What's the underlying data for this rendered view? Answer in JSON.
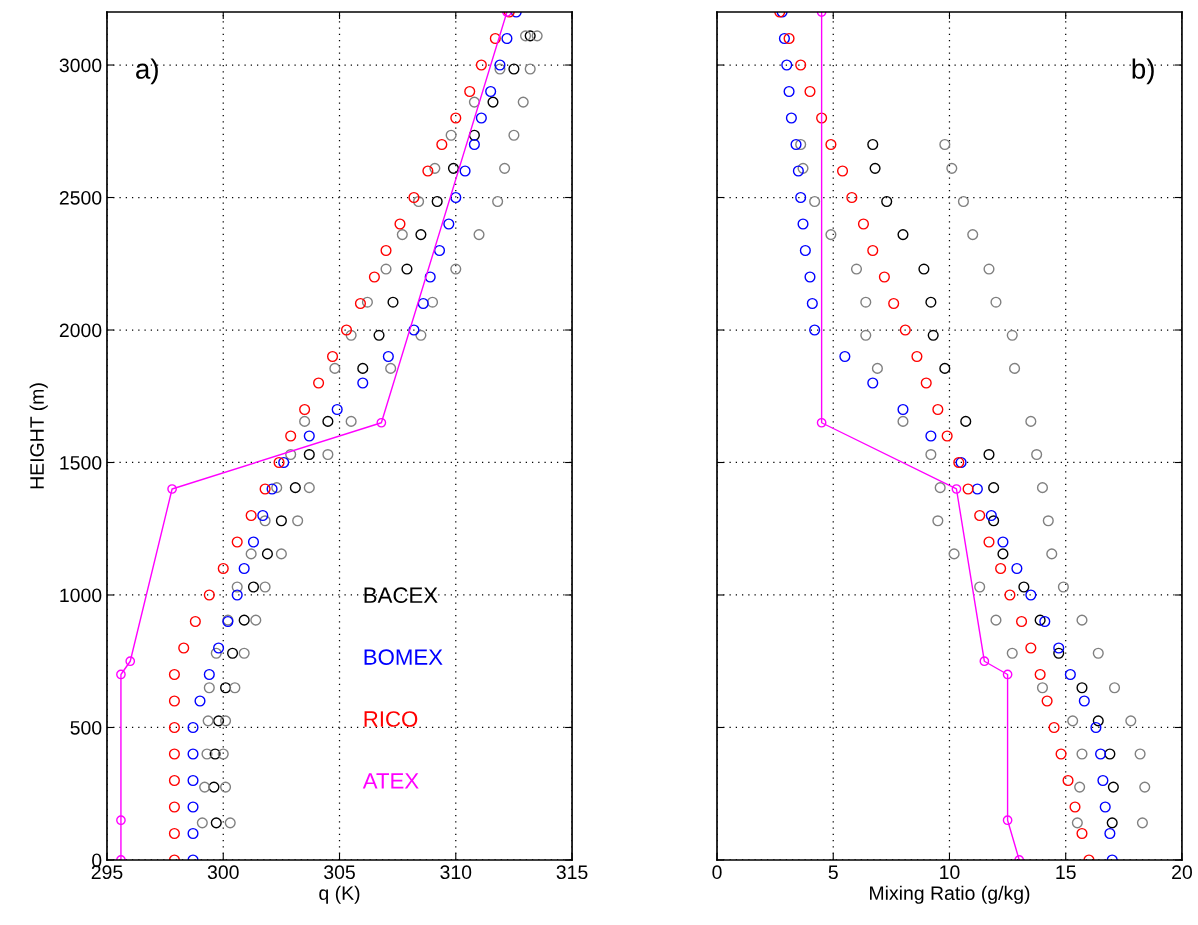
{
  "chart_data": [
    {
      "type": "scatter",
      "xlabel": "q (K)",
      "ylabel": "HEIGHT (m)",
      "annotations": [
        "a)"
      ],
      "xlim": [
        295,
        315
      ],
      "xticks": [
        295,
        300,
        305,
        310,
        315
      ],
      "ylim": [
        0,
        3200
      ],
      "yticks": [
        0,
        500,
        1000,
        1500,
        2000,
        2500,
        3000
      ],
      "grid": true,
      "legend": "bottom right",
      "marker": "circle",
      "series": [
        {
          "name": "BACEX",
          "color": "#000000",
          "x": [
            299.7,
            299.6,
            299.65,
            299.8,
            300.1,
            300.4,
            300.9,
            301.3,
            301.9,
            302.5,
            303.1,
            303.7,
            304.5,
            306.0,
            306.7,
            307.3,
            307.9,
            308.5,
            309.2,
            309.9,
            310.8,
            311.6,
            312.5,
            313.2
          ],
          "values": [
            140,
            275,
            400,
            525,
            650,
            780,
            905,
            1030,
            1155,
            1280,
            1405,
            1530,
            1655,
            1855,
            1980,
            2105,
            2230,
            2360,
            2485,
            2610,
            2735,
            2860,
            2985,
            3110
          ]
        },
        {
          "color": "#808080",
          "x": [
            299.1,
            299.2,
            299.3,
            299.35,
            299.4,
            299.7,
            300.2,
            300.6,
            301.2,
            301.8,
            302.3,
            302.9,
            303.5,
            304.8,
            305.5,
            306.2,
            307.0,
            307.7,
            308.4,
            309.1,
            309.8,
            310.8,
            311.9,
            313.0
          ],
          "values": [
            140,
            275,
            400,
            525,
            650,
            780,
            905,
            1030,
            1155,
            1280,
            1405,
            1530,
            1655,
            1855,
            1980,
            2105,
            2230,
            2360,
            2485,
            2610,
            2735,
            2860,
            2985,
            3110
          ]
        },
        {
          "color": "#808080",
          "x": [
            300.3,
            300.1,
            300.0,
            300.1,
            300.5,
            300.9,
            301.4,
            301.8,
            302.5,
            303.2,
            303.7,
            304.5,
            305.5,
            307.2,
            308.5,
            309.0,
            310.0,
            311.0,
            311.8,
            312.1,
            312.5,
            312.9,
            313.2,
            313.5
          ],
          "values": [
            140,
            275,
            400,
            525,
            650,
            780,
            905,
            1030,
            1155,
            1280,
            1405,
            1530,
            1655,
            1855,
            1980,
            2105,
            2230,
            2360,
            2485,
            2610,
            2735,
            2860,
            2985,
            3110
          ]
        },
        {
          "name": "BOMEX",
          "color": "#0000ff",
          "x": [
            298.7,
            298.7,
            298.7,
            298.7,
            298.7,
            298.7,
            299.0,
            299.4,
            299.8,
            300.2,
            300.6,
            300.9,
            301.3,
            301.7,
            302.1,
            302.6,
            303.7,
            304.9,
            306.0,
            307.1,
            308.2,
            308.6,
            308.9,
            309.3,
            309.7,
            310.0,
            310.4,
            310.8,
            311.1,
            311.5,
            311.9,
            312.2,
            312.6
          ],
          "values": [
            0,
            100,
            200,
            300,
            400,
            500,
            600,
            700,
            800,
            900,
            1000,
            1100,
            1200,
            1300,
            1400,
            1500,
            1600,
            1700,
            1800,
            1900,
            2000,
            2100,
            2200,
            2300,
            2400,
            2500,
            2600,
            2700,
            2800,
            2900,
            3000,
            3100,
            3200
          ]
        },
        {
          "name": "RICO",
          "color": "#ff0000",
          "x": [
            297.9,
            297.9,
            297.9,
            297.9,
            297.9,
            297.9,
            297.9,
            297.9,
            298.3,
            298.8,
            299.4,
            300.0,
            300.6,
            301.2,
            301.8,
            302.4,
            302.9,
            303.5,
            304.1,
            304.7,
            305.3,
            305.9,
            306.5,
            307.0,
            307.6,
            308.2,
            308.8,
            309.4,
            310.0,
            310.6,
            311.1,
            311.7,
            312.3
          ],
          "values": [
            0,
            100,
            200,
            300,
            400,
            500,
            600,
            700,
            800,
            900,
            1000,
            1100,
            1200,
            1300,
            1400,
            1500,
            1600,
            1700,
            1800,
            1900,
            2000,
            2100,
            2200,
            2300,
            2400,
            2500,
            2600,
            2700,
            2800,
            2900,
            3000,
            3100,
            3200
          ]
        },
        {
          "name": "ATEX",
          "color": "#ff00ff",
          "type": "line",
          "x": [
            295.6,
            295.6,
            295.6,
            296.0,
            297.8,
            306.8,
            312.2
          ],
          "values": [
            0,
            150,
            700,
            750,
            1400,
            1650,
            3200
          ]
        }
      ]
    },
    {
      "type": "scatter",
      "xlabel": "Mixing Ratio (g/kg)",
      "annotations": [
        "b)"
      ],
      "xlim": [
        0,
        20
      ],
      "xticks": [
        0,
        5,
        10,
        15,
        20
      ],
      "ylim": [
        0,
        3200
      ],
      "yticks": [
        0,
        500,
        1000,
        1500,
        2000,
        2500,
        3000
      ],
      "tick_labels": "x",
      "grid": true,
      "marker": "circle",
      "series": [
        {
          "color": "#000000",
          "x": [
            17.0,
            17.05,
            16.9,
            16.4,
            15.7,
            14.7,
            13.9,
            13.2,
            12.3,
            11.9,
            11.9,
            11.7,
            10.7,
            9.8,
            9.3,
            9.2,
            8.9,
            8.0,
            7.3,
            6.8,
            6.7
          ],
          "values": [
            140,
            275,
            400,
            525,
            650,
            780,
            905,
            1030,
            1155,
            1280,
            1405,
            1530,
            1655,
            1855,
            1980,
            2105,
            2230,
            2360,
            2485,
            2610,
            2700
          ]
        },
        {
          "color": "#808080",
          "x": [
            15.5,
            15.6,
            15.7,
            15.3,
            14.0,
            12.7,
            12.0,
            11.3,
            10.2,
            9.5,
            9.6,
            9.2,
            8.0,
            6.9,
            6.4,
            6.4,
            6.0,
            4.9,
            4.2,
            3.7,
            3.6
          ],
          "values": [
            140,
            275,
            400,
            525,
            650,
            780,
            905,
            1030,
            1155,
            1280,
            1405,
            1530,
            1655,
            1855,
            1980,
            2105,
            2230,
            2360,
            2485,
            2610,
            2700
          ]
        },
        {
          "color": "#808080",
          "x": [
            18.3,
            18.4,
            18.2,
            17.8,
            17.1,
            16.4,
            15.7,
            14.9,
            14.4,
            14.25,
            14.0,
            13.75,
            13.5,
            12.8,
            12.7,
            12.0,
            11.7,
            11.0,
            10.6,
            10.1,
            9.8
          ],
          "values": [
            140,
            275,
            400,
            525,
            650,
            780,
            905,
            1030,
            1155,
            1280,
            1405,
            1530,
            1655,
            1855,
            1980,
            2105,
            2230,
            2360,
            2485,
            2610,
            2700
          ]
        },
        {
          "color": "#0000ff",
          "x": [
            17.0,
            16.9,
            16.7,
            16.6,
            16.5,
            16.3,
            15.8,
            15.2,
            14.7,
            14.1,
            13.5,
            12.9,
            12.3,
            11.8,
            11.2,
            10.5,
            9.2,
            8.0,
            6.7,
            5.5,
            4.2,
            4.1,
            4.0,
            3.8,
            3.7,
            3.6,
            3.5,
            3.4,
            3.2,
            3.1,
            3.0,
            2.9,
            2.8
          ],
          "values": [
            0,
            100,
            200,
            300,
            400,
            500,
            600,
            700,
            800,
            900,
            1000,
            1100,
            1200,
            1300,
            1400,
            1500,
            1600,
            1700,
            1800,
            1900,
            2000,
            2100,
            2200,
            2300,
            2400,
            2500,
            2600,
            2700,
            2800,
            2900,
            3000,
            3100,
            3200
          ]
        },
        {
          "color": "#ff0000",
          "x": [
            16.0,
            15.7,
            15.4,
            15.1,
            14.8,
            14.5,
            14.2,
            13.9,
            13.5,
            13.1,
            12.6,
            12.2,
            11.7,
            11.3,
            10.8,
            10.4,
            9.9,
            9.5,
            9.0,
            8.6,
            8.1,
            7.6,
            7.2,
            6.7,
            6.3,
            5.8,
            5.4,
            4.9,
            4.5,
            4.0,
            3.6,
            3.1,
            2.7
          ],
          "values": [
            0,
            100,
            200,
            300,
            400,
            500,
            600,
            700,
            800,
            900,
            1000,
            1100,
            1200,
            1300,
            1400,
            1500,
            1600,
            1700,
            1800,
            1900,
            2000,
            2100,
            2200,
            2300,
            2400,
            2500,
            2600,
            2700,
            2800,
            2900,
            3000,
            3100,
            3200
          ]
        },
        {
          "color": "#ff00ff",
          "type": "line",
          "x": [
            13.0,
            12.5,
            12.5,
            11.5,
            10.3,
            4.5,
            4.5
          ],
          "values": [
            0,
            150,
            700,
            750,
            1400,
            1650,
            3200
          ]
        }
      ]
    }
  ]
}
